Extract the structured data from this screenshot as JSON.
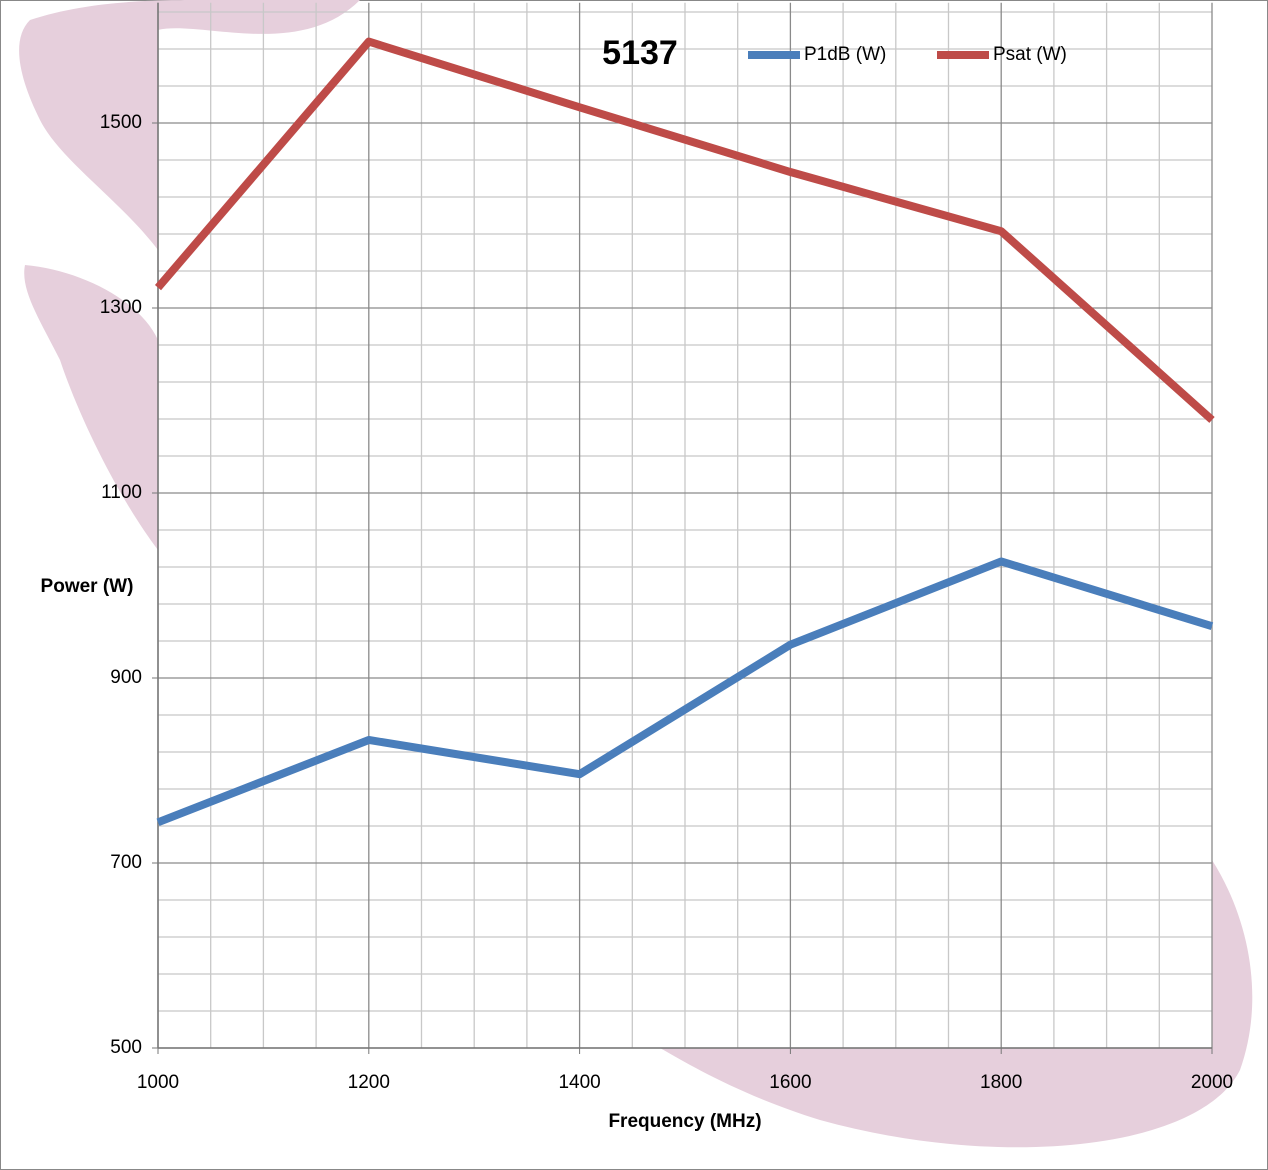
{
  "chart_data": {
    "type": "line",
    "title": "5137",
    "x_label": "Frequency (MHz)",
    "y_label": "Power (W)",
    "x": [
      1000,
      1200,
      1400,
      1600,
      1800,
      2000
    ],
    "series": [
      {
        "name": "P1dB (W)",
        "color": "#4a7ebb",
        "values": [
          744,
          833,
          796,
          936,
          1026,
          956
        ]
      },
      {
        "name": "Psat (W)",
        "color": "#be4b48",
        "values": [
          1322,
          1588,
          1517,
          1447,
          1383,
          1179
        ]
      }
    ],
    "xlim": [
      1000,
      2000
    ],
    "xticks": [
      1000,
      1200,
      1400,
      1600,
      1800,
      2000
    ],
    "xminorticks": [
      1050,
      1100,
      1150,
      1250,
      1300,
      1350,
      1450,
      1500,
      1550,
      1650,
      1700,
      1750,
      1850,
      1900,
      1950
    ],
    "ylim": [
      500,
      1630
    ],
    "yticks": [
      500,
      700,
      900,
      1100,
      1300,
      1500
    ],
    "yminorticks": [
      540,
      580,
      620,
      660,
      740,
      780,
      820,
      860,
      940,
      980,
      1020,
      1060,
      1140,
      1180,
      1220,
      1260,
      1340,
      1380,
      1420,
      1460,
      1540,
      1580,
      1620
    ],
    "grid": true,
    "legend": "top"
  }
}
